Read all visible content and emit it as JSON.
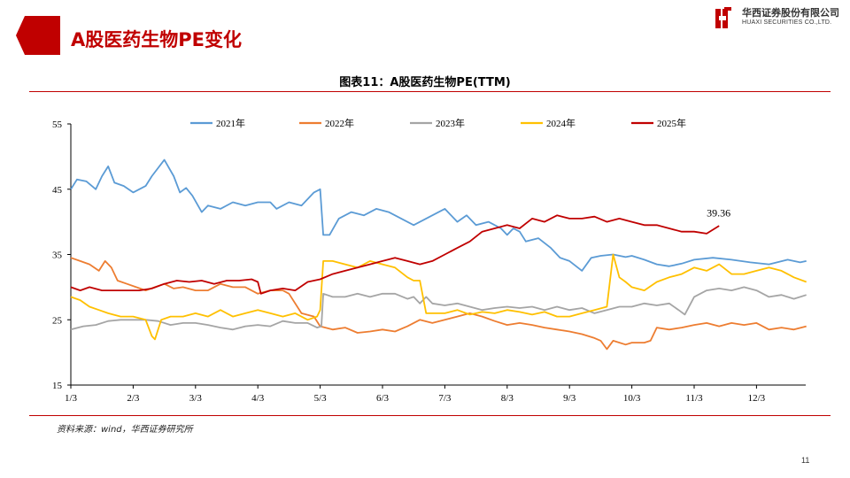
{
  "header": {
    "title": "A股医药生物PE变化"
  },
  "logo": {
    "cn": "华西证券股份有限公司",
    "en": "HUAXI SECURITIES CO.,LTD."
  },
  "brand_color": "#c00000",
  "source": "资料来源：wind，华西证券研究所",
  "page_number": "11",
  "chart_data": {
    "type": "line",
    "title": "图表11：A股医药生物PE(TTM)",
    "xlabel": "",
    "ylabel": "",
    "ylim": [
      15,
      55
    ],
    "yticks": [
      15,
      25,
      35,
      45,
      55
    ],
    "xlim": [
      0,
      12
    ],
    "xtick_labels": [
      "1/3",
      "2/3",
      "3/3",
      "4/3",
      "5/3",
      "6/3",
      "7/3",
      "8/3",
      "9/3",
      "10/3",
      "11/3",
      "12/3"
    ],
    "xtick_positions": [
      0,
      1,
      2,
      3,
      4,
      5,
      6,
      7,
      8,
      9,
      10,
      11
    ],
    "legend_position": "top",
    "series": [
      {
        "name": "2021年",
        "color": "#5b9bd5",
        "x": [
          0,
          0.1,
          0.25,
          0.4,
          0.5,
          0.6,
          0.7,
          0.85,
          1.0,
          1.2,
          1.3,
          1.5,
          1.65,
          1.75,
          1.85,
          1.95,
          2.1,
          2.2,
          2.4,
          2.6,
          2.8,
          3.0,
          3.2,
          3.3,
          3.5,
          3.7,
          3.9,
          4.0,
          4.05,
          4.15,
          4.3,
          4.5,
          4.7,
          4.9,
          5.1,
          5.3,
          5.5,
          5.7,
          5.9,
          6.0,
          6.2,
          6.35,
          6.5,
          6.7,
          6.9,
          7.0,
          7.1,
          7.2,
          7.3,
          7.5,
          7.7,
          7.85,
          8.0,
          8.2,
          8.35,
          8.5,
          8.7,
          8.9,
          9.0,
          9.2,
          9.4,
          9.6,
          9.8,
          10.0,
          10.3,
          10.6,
          10.9,
          11.2,
          11.5,
          11.7,
          11.8
        ],
        "values": [
          45,
          46.5,
          46.2,
          45,
          47,
          48.5,
          46,
          45.5,
          44.5,
          45.5,
          47,
          49.5,
          47,
          44.5,
          45.2,
          44,
          41.5,
          42.5,
          42,
          43,
          42.5,
          43,
          43,
          42,
          43,
          42.5,
          44.5,
          45,
          38,
          38,
          40.5,
          41.5,
          41,
          42,
          41.5,
          40.5,
          39.5,
          40.5,
          41.5,
          42,
          40,
          41,
          39.5,
          40,
          39,
          38,
          39,
          38.5,
          37,
          37.5,
          36,
          34.5,
          34,
          32.5,
          34.5,
          34.8,
          35,
          34.6,
          34.8,
          34.2,
          33.5,
          33.2,
          33.6,
          34.2,
          34.5,
          34.2,
          33.8,
          33.5,
          34.2,
          33.8,
          34.0
        ]
      },
      {
        "name": "2022年",
        "color": "#ed7d31",
        "x": [
          0,
          0.15,
          0.3,
          0.45,
          0.55,
          0.65,
          0.75,
          0.9,
          1.05,
          1.2,
          1.35,
          1.5,
          1.65,
          1.8,
          2.0,
          2.2,
          2.4,
          2.6,
          2.8,
          3.0,
          3.2,
          3.4,
          3.5,
          3.7,
          3.9,
          4.0,
          4.2,
          4.4,
          4.6,
          4.8,
          5.0,
          5.2,
          5.4,
          5.6,
          5.8,
          6.0,
          6.2,
          6.4,
          6.6,
          6.8,
          7.0,
          7.2,
          7.4,
          7.6,
          7.8,
          8.0,
          8.2,
          8.4,
          8.5,
          8.6,
          8.7,
          8.9,
          9.0,
          9.2,
          9.3,
          9.4,
          9.6,
          9.8,
          10.0,
          10.2,
          10.4,
          10.6,
          10.8,
          11.0,
          11.2,
          11.4,
          11.6,
          11.8
        ],
        "values": [
          34.5,
          34,
          33.5,
          32.5,
          34,
          33,
          31,
          30.5,
          30,
          29.5,
          30,
          30.5,
          29.8,
          30,
          29.5,
          29.5,
          30.5,
          30,
          30,
          29,
          29.5,
          29.5,
          29,
          26,
          25.5,
          24,
          23.5,
          23.8,
          23,
          23.2,
          23.5,
          23.2,
          24,
          25,
          24.5,
          25,
          25.5,
          26,
          25.5,
          24.8,
          24.2,
          24.5,
          24.2,
          23.8,
          23.5,
          23.2,
          22.8,
          22.2,
          21.8,
          20.5,
          21.8,
          21.2,
          21.5,
          21.5,
          21.8,
          23.8,
          23.5,
          23.8,
          24.2,
          24.5,
          24,
          24.5,
          24.2,
          24.5,
          23.5,
          23.8,
          23.5,
          24.0
        ]
      },
      {
        "name": "2023年",
        "color": "#a5a5a5",
        "x": [
          0,
          0.2,
          0.4,
          0.6,
          0.8,
          1.0,
          1.2,
          1.4,
          1.6,
          1.8,
          2.0,
          2.2,
          2.4,
          2.6,
          2.8,
          3.0,
          3.2,
          3.4,
          3.6,
          3.8,
          3.95,
          4.02,
          4.05,
          4.2,
          4.4,
          4.6,
          4.8,
          5.0,
          5.2,
          5.4,
          5.5,
          5.6,
          5.7,
          5.8,
          6.0,
          6.2,
          6.4,
          6.6,
          6.8,
          7.0,
          7.2,
          7.4,
          7.6,
          7.8,
          8.0,
          8.2,
          8.4,
          8.6,
          8.8,
          9.0,
          9.2,
          9.4,
          9.6,
          9.75,
          9.85,
          10.0,
          10.2,
          10.4,
          10.6,
          10.8,
          11.0,
          11.2,
          11.4,
          11.6,
          11.8
        ],
        "values": [
          23.5,
          24,
          24.2,
          24.8,
          25,
          25,
          25,
          24.8,
          24.2,
          24.5,
          24.5,
          24.2,
          23.8,
          23.5,
          24,
          24.2,
          24,
          24.8,
          24.5,
          24.5,
          23.8,
          24,
          29,
          28.5,
          28.5,
          29,
          28.5,
          29,
          29,
          28.2,
          28.5,
          27.5,
          28.5,
          27.5,
          27.2,
          27.5,
          27,
          26.5,
          26.8,
          27,
          26.8,
          27,
          26.5,
          27,
          26.5,
          26.8,
          26,
          26.5,
          27,
          27,
          27.5,
          27.2,
          27.5,
          26.5,
          25.8,
          28.5,
          29.5,
          29.8,
          29.5,
          30,
          29.5,
          28.5,
          28.8,
          28.2,
          28.8
        ]
      },
      {
        "name": "2024年",
        "color": "#ffc000",
        "x": [
          0,
          0.15,
          0.3,
          0.45,
          0.6,
          0.8,
          1.0,
          1.2,
          1.3,
          1.35,
          1.45,
          1.6,
          1.8,
          2.0,
          2.2,
          2.4,
          2.6,
          2.8,
          3.0,
          3.2,
          3.4,
          3.6,
          3.8,
          3.95,
          4.0,
          4.05,
          4.2,
          4.4,
          4.6,
          4.8,
          5.0,
          5.2,
          5.4,
          5.5,
          5.6,
          5.7,
          5.8,
          6.0,
          6.2,
          6.4,
          6.6,
          6.8,
          7.0,
          7.2,
          7.4,
          7.6,
          7.8,
          8.0,
          8.2,
          8.4,
          8.6,
          8.7,
          8.8,
          8.9,
          9.0,
          9.2,
          9.4,
          9.6,
          9.8,
          10.0,
          10.2,
          10.4,
          10.6,
          10.8,
          11.0,
          11.2,
          11.4,
          11.6,
          11.8
        ],
        "values": [
          28.5,
          28,
          27,
          26.5,
          26,
          25.5,
          25.5,
          25,
          22.5,
          22,
          25,
          25.5,
          25.5,
          26,
          25.5,
          26.5,
          25.5,
          26,
          26.5,
          26,
          25.5,
          26,
          25,
          25.5,
          26.5,
          34,
          34,
          33.5,
          33,
          34,
          33.5,
          33,
          31.5,
          31,
          31,
          26,
          26,
          26,
          26.5,
          25.8,
          26.2,
          26,
          26.5,
          26.2,
          25.8,
          26.2,
          25.5,
          25.5,
          26,
          26.5,
          27,
          35,
          31.5,
          30.8,
          30,
          29.5,
          30.8,
          31.5,
          32,
          33,
          32.5,
          33.5,
          32,
          32,
          32.5,
          33,
          32.5,
          31.5,
          30.8
        ]
      },
      {
        "name": "2025年",
        "color": "#c00000",
        "x": [
          0,
          0.15,
          0.3,
          0.5,
          0.7,
          0.9,
          1.1,
          1.3,
          1.5,
          1.7,
          1.9,
          2.1,
          2.3,
          2.5,
          2.7,
          2.9,
          3.0,
          3.05,
          3.2,
          3.4,
          3.6,
          3.8,
          4.0,
          4.2,
          4.4,
          4.6,
          4.8,
          5.0,
          5.2,
          5.4,
          5.6,
          5.8,
          6.0,
          6.2,
          6.4,
          6.6,
          6.8,
          7.0,
          7.2,
          7.4,
          7.6,
          7.8,
          8.0,
          8.2,
          8.4,
          8.6,
          8.8,
          9.0,
          9.2,
          9.4,
          9.6,
          9.8,
          10.0,
          10.2,
          10.4
        ],
        "values": [
          30,
          29.5,
          30,
          29.5,
          29.5,
          29.5,
          29.5,
          29.8,
          30.5,
          31,
          30.8,
          31,
          30.5,
          31,
          31,
          31.2,
          30.8,
          29,
          29.5,
          29.8,
          29.5,
          30.8,
          31.2,
          32,
          32.5,
          33,
          33.5,
          34,
          34.5,
          34,
          33.5,
          34,
          35,
          36,
          37,
          38.5,
          39,
          39.5,
          39,
          40.5,
          40,
          41,
          40.5,
          40.5,
          40.8,
          40,
          40.5,
          40,
          39.5,
          39.5,
          39,
          38.5,
          38.5,
          38.2,
          39.4
        ]
      }
    ],
    "annotations": [
      {
        "text": "39.36",
        "x": 10.3,
        "y": 39.36
      }
    ]
  }
}
